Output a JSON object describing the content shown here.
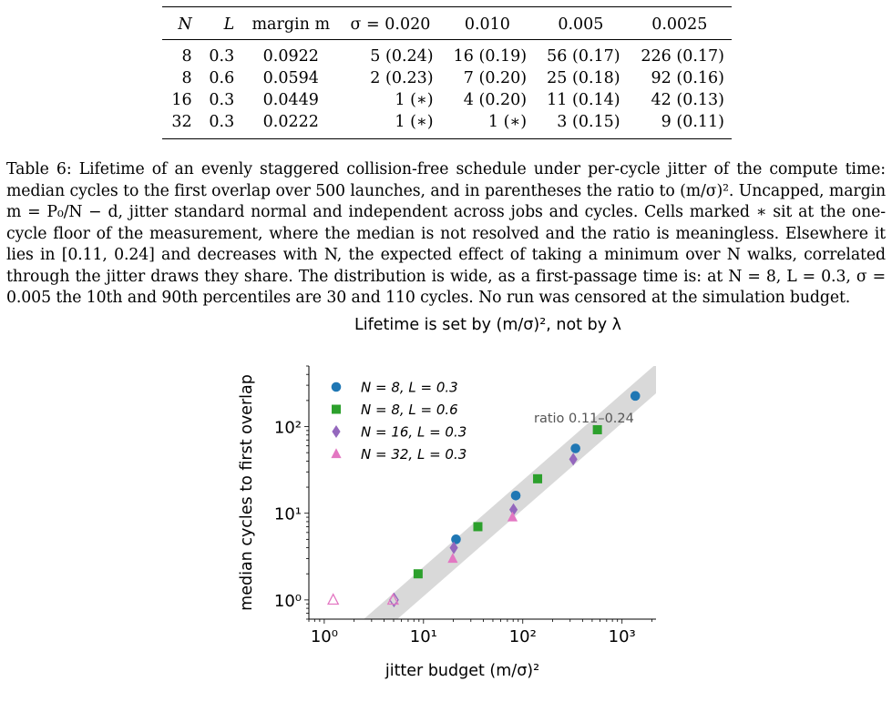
{
  "table": {
    "headers": [
      "N",
      "L",
      "margin m",
      "σ = 0.020",
      "0.010",
      "0.005",
      "0.0025"
    ],
    "rows": [
      [
        "8",
        "0.3",
        "0.0922",
        "5 (0.24)",
        "16 (0.19)",
        "56 (0.17)",
        "226 (0.17)"
      ],
      [
        "8",
        "0.6",
        "0.0594",
        "2 (0.23)",
        "7 (0.20)",
        "25 (0.18)",
        "92 (0.16)"
      ],
      [
        "16",
        "0.3",
        "0.0449",
        "1 (∗)",
        "4 (0.20)",
        "11 (0.14)",
        "42 (0.13)"
      ],
      [
        "32",
        "0.3",
        "0.0222",
        "1 (∗)",
        "1 (∗)",
        "3 (0.15)",
        "9 (0.11)"
      ]
    ]
  },
  "caption": {
    "text": "Table 6: Lifetime of an evenly staggered collision-free schedule under per-cycle jitter of the compute time: median cycles to the first overlap over 500 launches, and in parentheses the ratio to (m/σ)². Uncapped, margin m = P₀/N − d, jitter standard normal and independent across jobs and cycles. Cells marked ∗ sit at the one-cycle floor of the measurement, where the median is not resolved and the ratio is meaningless. Elsewhere it lies in [0.11, 0.24] and decreases with N, the expected effect of taking a minimum over N walks, correlated through the jitter draws they share. The distribution is wide, as a first-passage time is: at N = 8, L = 0.3, σ = 0.005 the 10th and 90th percentiles are 30 and 110 cycles. No run was censored at the simulation budget."
  },
  "chart_data": {
    "type": "scatter",
    "title": "Lifetime is set by (m/σ)², not by λ",
    "xlabel": "jitter budget (m/σ)²",
    "ylabel": "median cycles to first overlap",
    "xscale": "log",
    "yscale": "log",
    "xlim": [
      0.7,
      2200
    ],
    "ylim": [
      0.6,
      500
    ],
    "x_ticks": [
      "10⁰",
      "10¹",
      "10²",
      "10³"
    ],
    "y_ticks": [
      "10⁰",
      "10¹",
      "10²"
    ],
    "band": {
      "label": "ratio 0.11–0.24",
      "low_ratio": 0.11,
      "high_ratio": 0.24,
      "color": "#d9d9d9"
    },
    "legend_position": "top-left",
    "series": [
      {
        "name": "N = 8, L = 0.3",
        "marker": "circle",
        "color": "#1f77b4",
        "points": [
          [
            21.25,
            5
          ],
          [
            85.0,
            16
          ],
          [
            340.0,
            56
          ],
          [
            1360.0,
            226
          ]
        ],
        "floor": [
          false,
          false,
          false,
          false
        ]
      },
      {
        "name": "N = 8, L = 0.6",
        "marker": "square",
        "color": "#2ca02c",
        "points": [
          [
            8.82,
            2
          ],
          [
            35.3,
            7
          ],
          [
            141.1,
            25
          ],
          [
            564.5,
            92
          ]
        ],
        "floor": [
          false,
          false,
          false,
          false
        ]
      },
      {
        "name": "N = 16, L = 0.3",
        "marker": "diamond",
        "color": "#9467bd",
        "points": [
          [
            5.04,
            1
          ],
          [
            20.2,
            4
          ],
          [
            80.6,
            11
          ],
          [
            322.5,
            42
          ]
        ],
        "floor": [
          true,
          false,
          false,
          false
        ]
      },
      {
        "name": "N = 32, L = 0.3",
        "marker": "triangle",
        "color": "#e377c2",
        "points": [
          [
            1.23,
            1
          ],
          [
            4.93,
            1
          ],
          [
            19.7,
            3
          ],
          [
            78.8,
            9
          ]
        ],
        "floor": [
          true,
          true,
          false,
          false
        ]
      }
    ]
  }
}
